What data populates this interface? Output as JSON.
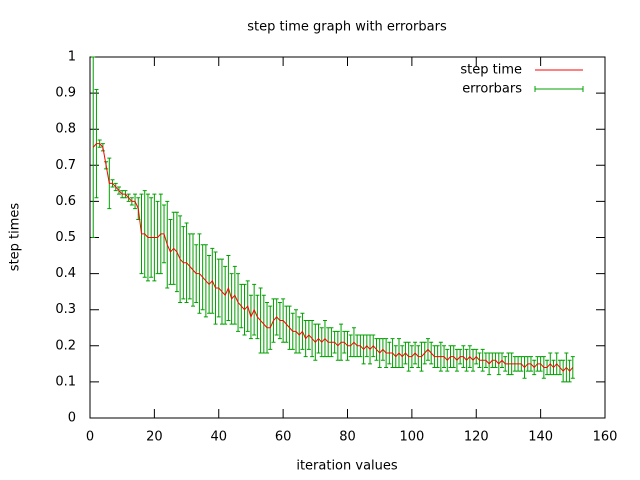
{
  "chart_data": {
    "type": "errorbar",
    "title": "step time graph with errorbars",
    "xlabel": "iteration values",
    "ylabel": "step times",
    "xlim": [
      0,
      160
    ],
    "xticks": [
      0,
      20,
      40,
      60,
      80,
      100,
      120,
      140,
      160
    ],
    "ylim": [
      0,
      1
    ],
    "yticks": [
      0,
      0.1,
      0.2,
      0.3,
      0.4,
      0.5,
      0.6,
      0.7,
      0.8,
      0.9,
      1
    ],
    "legend": "top-right",
    "x": [
      1,
      2,
      3,
      4,
      5,
      6,
      7,
      8,
      9,
      10,
      11,
      12,
      13,
      14,
      15,
      16,
      17,
      18,
      19,
      20,
      21,
      22,
      23,
      24,
      25,
      26,
      27,
      28,
      29,
      30,
      31,
      32,
      33,
      34,
      35,
      36,
      37,
      38,
      39,
      40,
      41,
      42,
      43,
      44,
      45,
      46,
      47,
      48,
      49,
      50,
      51,
      52,
      53,
      54,
      55,
      56,
      57,
      58,
      59,
      60,
      61,
      62,
      63,
      64,
      65,
      66,
      67,
      68,
      69,
      70,
      71,
      72,
      73,
      74,
      75,
      76,
      77,
      78,
      79,
      80,
      81,
      82,
      83,
      84,
      85,
      86,
      87,
      88,
      89,
      90,
      91,
      92,
      93,
      94,
      95,
      96,
      97,
      98,
      99,
      100,
      101,
      102,
      103,
      104,
      105,
      106,
      107,
      108,
      109,
      110,
      111,
      112,
      113,
      114,
      115,
      116,
      117,
      118,
      119,
      120,
      121,
      122,
      123,
      124,
      125,
      126,
      127,
      128,
      129,
      130,
      131,
      132,
      133,
      134,
      135,
      136,
      137,
      138,
      139,
      140,
      141,
      142,
      143,
      144,
      145,
      146,
      147,
      148,
      149,
      150
    ],
    "series": [
      {
        "name": "step time",
        "color": "#ff0000",
        "values": [
          0.75,
          0.76,
          0.76,
          0.75,
          0.7,
          0.65,
          0.65,
          0.64,
          0.63,
          0.62,
          0.62,
          0.61,
          0.6,
          0.6,
          0.58,
          0.51,
          0.51,
          0.5,
          0.5,
          0.5,
          0.5,
          0.51,
          0.51,
          0.48,
          0.46,
          0.47,
          0.46,
          0.44,
          0.43,
          0.43,
          0.42,
          0.41,
          0.4,
          0.4,
          0.39,
          0.38,
          0.37,
          0.38,
          0.36,
          0.36,
          0.35,
          0.34,
          0.36,
          0.33,
          0.34,
          0.32,
          0.31,
          0.3,
          0.31,
          0.28,
          0.3,
          0.28,
          0.27,
          0.26,
          0.25,
          0.25,
          0.27,
          0.28,
          0.27,
          0.27,
          0.26,
          0.25,
          0.24,
          0.24,
          0.23,
          0.24,
          0.22,
          0.23,
          0.22,
          0.21,
          0.22,
          0.21,
          0.22,
          0.21,
          0.21,
          0.21,
          0.2,
          0.21,
          0.21,
          0.2,
          0.2,
          0.21,
          0.2,
          0.2,
          0.19,
          0.2,
          0.19,
          0.2,
          0.19,
          0.18,
          0.19,
          0.18,
          0.18,
          0.18,
          0.17,
          0.18,
          0.17,
          0.18,
          0.17,
          0.17,
          0.18,
          0.17,
          0.17,
          0.18,
          0.19,
          0.18,
          0.17,
          0.17,
          0.17,
          0.17,
          0.16,
          0.17,
          0.17,
          0.16,
          0.17,
          0.17,
          0.16,
          0.17,
          0.16,
          0.17,
          0.16,
          0.16,
          0.16,
          0.15,
          0.16,
          0.16,
          0.15,
          0.16,
          0.15,
          0.15,
          0.15,
          0.15,
          0.15,
          0.15,
          0.14,
          0.15,
          0.15,
          0.14,
          0.15,
          0.15,
          0.14,
          0.14,
          0.15,
          0.14,
          0.15,
          0.14,
          0.13,
          0.14,
          0.13,
          0.14
        ]
      },
      {
        "name": "errorbars",
        "color": "#00a000",
        "values": [
          0.75,
          0.76,
          0.76,
          0.75,
          0.7,
          0.65,
          0.65,
          0.64,
          0.63,
          0.62,
          0.62,
          0.61,
          0.6,
          0.6,
          0.58,
          0.51,
          0.51,
          0.5,
          0.5,
          0.5,
          0.5,
          0.51,
          0.51,
          0.48,
          0.46,
          0.47,
          0.46,
          0.44,
          0.43,
          0.43,
          0.42,
          0.41,
          0.4,
          0.4,
          0.39,
          0.38,
          0.37,
          0.38,
          0.36,
          0.36,
          0.35,
          0.34,
          0.36,
          0.33,
          0.34,
          0.32,
          0.31,
          0.3,
          0.31,
          0.28,
          0.3,
          0.28,
          0.27,
          0.26,
          0.25,
          0.25,
          0.27,
          0.28,
          0.27,
          0.27,
          0.26,
          0.25,
          0.24,
          0.24,
          0.23,
          0.24,
          0.22,
          0.23,
          0.22,
          0.21,
          0.22,
          0.21,
          0.22,
          0.21,
          0.21,
          0.21,
          0.2,
          0.21,
          0.21,
          0.2,
          0.2,
          0.21,
          0.2,
          0.2,
          0.19,
          0.2,
          0.19,
          0.2,
          0.19,
          0.18,
          0.19,
          0.18,
          0.18,
          0.18,
          0.17,
          0.18,
          0.17,
          0.18,
          0.17,
          0.17,
          0.18,
          0.17,
          0.17,
          0.18,
          0.19,
          0.18,
          0.17,
          0.17,
          0.17,
          0.17,
          0.16,
          0.17,
          0.17,
          0.16,
          0.17,
          0.17,
          0.16,
          0.17,
          0.16,
          0.17,
          0.16,
          0.16,
          0.16,
          0.15,
          0.16,
          0.16,
          0.15,
          0.16,
          0.15,
          0.15,
          0.15,
          0.15,
          0.15,
          0.15,
          0.14,
          0.15,
          0.15,
          0.14,
          0.15,
          0.15,
          0.14,
          0.14,
          0.15,
          0.14,
          0.15,
          0.14,
          0.13,
          0.14,
          0.13,
          0.14
        ],
        "errors": [
          0.25,
          0.15,
          0.01,
          0.01,
          0.01,
          0.07,
          0.01,
          0.01,
          0.01,
          0.01,
          0.01,
          0.01,
          0.01,
          0.02,
          0.03,
          0.11,
          0.12,
          0.12,
          0.11,
          0.12,
          0.1,
          0.11,
          0.08,
          0.12,
          0.09,
          0.1,
          0.11,
          0.12,
          0.1,
          0.11,
          0.09,
          0.1,
          0.08,
          0.11,
          0.09,
          0.1,
          0.08,
          0.09,
          0.1,
          0.08,
          0.09,
          0.08,
          0.09,
          0.07,
          0.08,
          0.08,
          0.06,
          0.07,
          0.07,
          0.06,
          0.07,
          0.06,
          0.09,
          0.08,
          0.07,
          0.06,
          0.06,
          0.05,
          0.05,
          0.06,
          0.05,
          0.06,
          0.05,
          0.06,
          0.05,
          0.05,
          0.05,
          0.04,
          0.05,
          0.05,
          0.04,
          0.04,
          0.05,
          0.04,
          0.04,
          0.03,
          0.04,
          0.05,
          0.03,
          0.04,
          0.03,
          0.04,
          0.03,
          0.03,
          0.04,
          0.03,
          0.04,
          0.03,
          0.03,
          0.04,
          0.03,
          0.04,
          0.03,
          0.04,
          0.03,
          0.04,
          0.03,
          0.03,
          0.04,
          0.03,
          0.03,
          0.03,
          0.04,
          0.03,
          0.03,
          0.03,
          0.03,
          0.03,
          0.04,
          0.03,
          0.03,
          0.03,
          0.03,
          0.03,
          0.02,
          0.03,
          0.03,
          0.03,
          0.03,
          0.02,
          0.02,
          0.03,
          0.02,
          0.03,
          0.02,
          0.02,
          0.03,
          0.02,
          0.02,
          0.03,
          0.03,
          0.02,
          0.02,
          0.02,
          0.03,
          0.02,
          0.02,
          0.02,
          0.02,
          0.02,
          0.03,
          0.02,
          0.03,
          0.02,
          0.03,
          0.02,
          0.03,
          0.04,
          0.03,
          0.03
        ]
      }
    ]
  }
}
